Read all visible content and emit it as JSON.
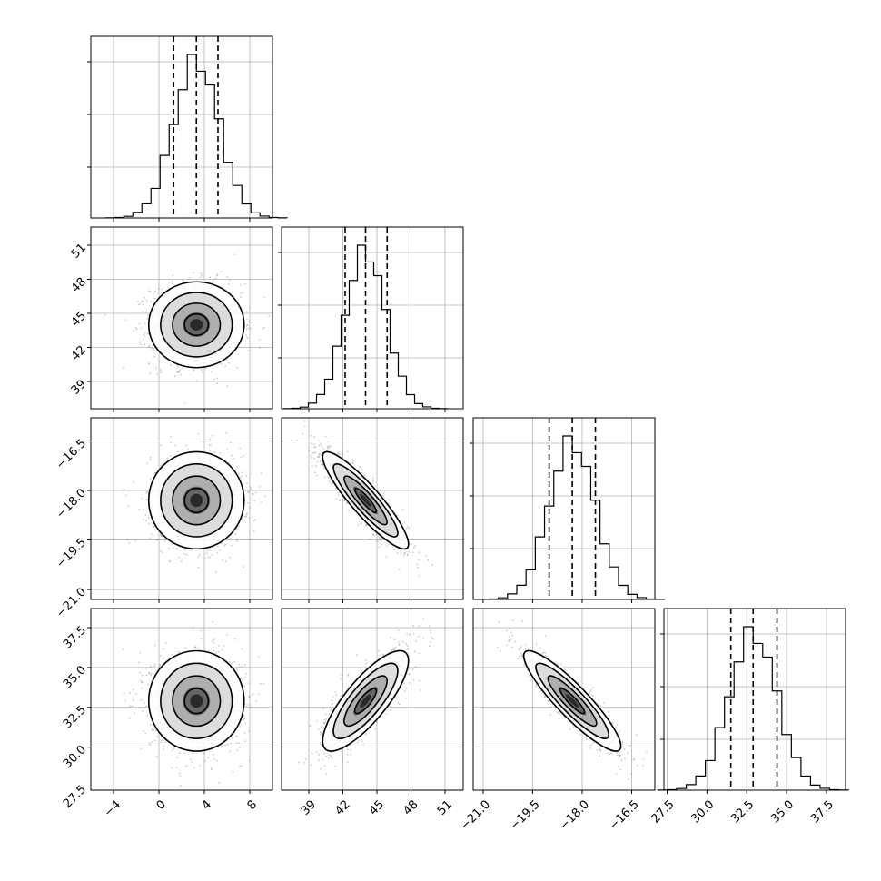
{
  "chart_data": {
    "type": "corner",
    "parameters": [
      {
        "ticks": [
          -4,
          0,
          4,
          8
        ],
        "tick_labels": [
          "−4",
          "0",
          "4",
          "8"
        ],
        "range": [
          -6.0,
          10.0
        ],
        "quantiles": [
          1.3,
          3.3,
          5.2
        ],
        "mean": 3.3,
        "sd": 2.0
      },
      {
        "ticks": [
          39,
          42,
          45,
          48,
          51
        ],
        "tick_labels": [
          "39",
          "42",
          "45",
          "48",
          "51"
        ],
        "range": [
          36.6,
          52.6
        ],
        "quantiles": [
          42.2,
          44.0,
          45.9
        ],
        "mean": 44.0,
        "sd": 1.8
      },
      {
        "ticks": [
          -21.0,
          -19.5,
          -18.0,
          -16.5
        ],
        "tick_labels": [
          "−21.0",
          "−19.5",
          "−18.0",
          "−16.5"
        ],
        "range": [
          -21.3,
          -15.8
        ],
        "quantiles": [
          -19.0,
          -18.3,
          -17.6
        ],
        "mean": -18.3,
        "sd": 0.7
      },
      {
        "ticks": [
          27.5,
          30.0,
          32.5,
          35.0,
          37.5
        ],
        "tick_labels": [
          "27.5",
          "30.0",
          "32.5",
          "35.0",
          "37.5"
        ],
        "range": [
          27.3,
          38.7
        ],
        "quantiles": [
          31.5,
          32.9,
          34.4
        ],
        "mean": 32.9,
        "sd": 1.5
      }
    ],
    "correlations": [
      [
        1.0,
        0.0,
        0.0,
        0.0
      ],
      [
        0.0,
        1.0,
        -0.9,
        0.8
      ],
      [
        0.0,
        -0.9,
        1.0,
        -0.9
      ],
      [
        0.0,
        0.8,
        -0.9,
        1.0
      ]
    ],
    "histogram_bins": 20,
    "contour_sigma_levels": [
      0.5,
      1.0,
      1.5,
      2.0
    ],
    "grid": true,
    "colors": {
      "line": "#000000",
      "grid": "#b0b0b0",
      "points": "#8a8a8a",
      "fill_max": "#000000"
    }
  }
}
